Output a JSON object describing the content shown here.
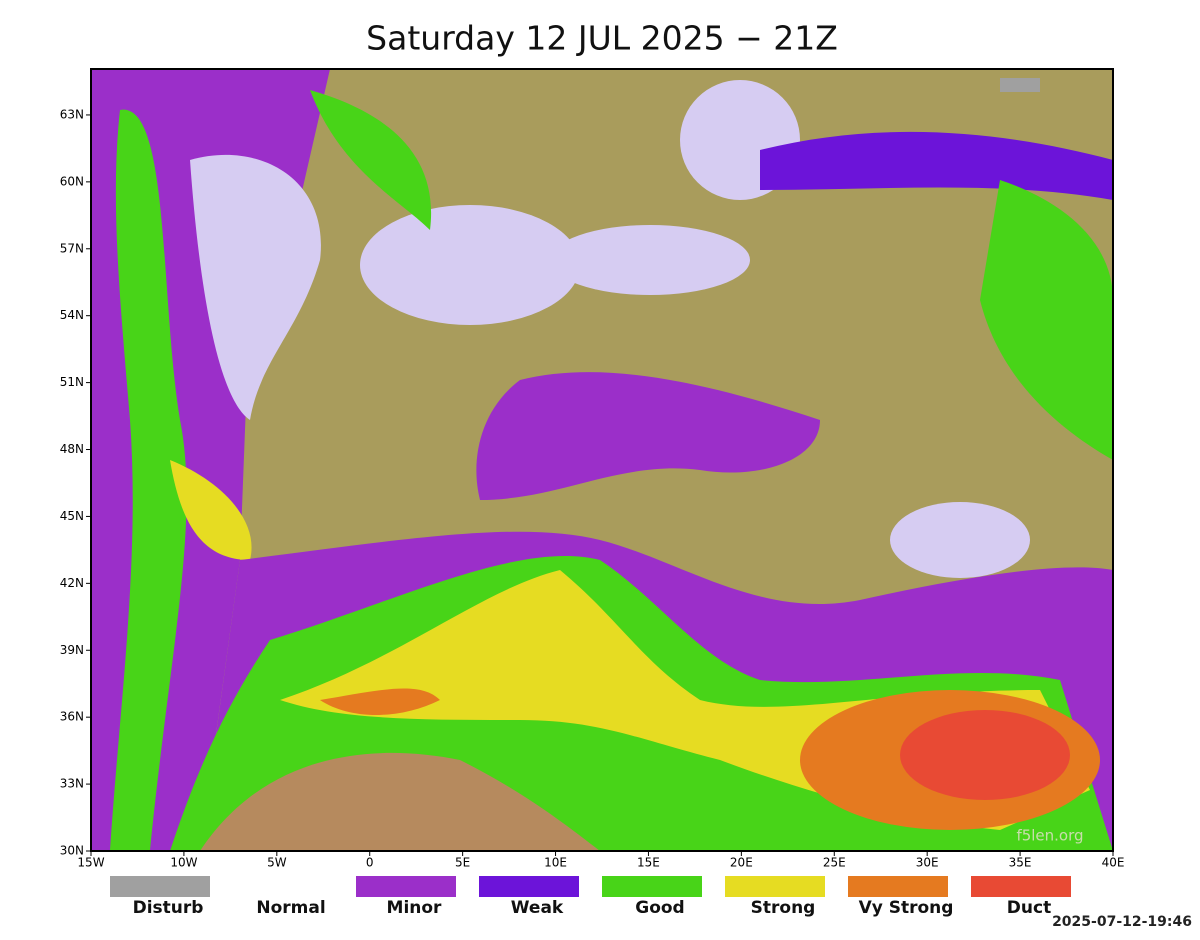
{
  "title": "Saturday 12 JUL 2025 − 21Z",
  "map": {
    "lat_range": [
      30,
      65.06
    ],
    "lon_range": [
      -15,
      40
    ],
    "lat_ticks": [
      {
        "value": 30,
        "label": "30N"
      },
      {
        "value": 33,
        "label": "33N"
      },
      {
        "value": 36,
        "label": "36N"
      },
      {
        "value": 39,
        "label": "39N"
      },
      {
        "value": 42,
        "label": "42N"
      },
      {
        "value": 45,
        "label": "45N"
      },
      {
        "value": 48,
        "label": "48N"
      },
      {
        "value": 51,
        "label": "51N"
      },
      {
        "value": 54,
        "label": "54N"
      },
      {
        "value": 57,
        "label": "57N"
      },
      {
        "value": 60,
        "label": "60N"
      },
      {
        "value": 63,
        "label": "63N"
      }
    ],
    "lon_ticks": [
      {
        "value": -15,
        "label": "15W"
      },
      {
        "value": -10,
        "label": "10W"
      },
      {
        "value": -5,
        "label": "5W"
      },
      {
        "value": 0,
        "label": "0"
      },
      {
        "value": 5,
        "label": "5E"
      },
      {
        "value": 10,
        "label": "10E"
      },
      {
        "value": 15,
        "label": "15E"
      },
      {
        "value": 20,
        "label": "20E"
      },
      {
        "value": 25,
        "label": "25E"
      },
      {
        "value": 30,
        "label": "30E"
      },
      {
        "value": 35,
        "label": "35E"
      },
      {
        "value": 40,
        "label": "40E"
      }
    ],
    "watermark": "f5len.org"
  },
  "legend": [
    {
      "label": "Disturb",
      "color": "#a0a0a0"
    },
    {
      "label": "Normal",
      "color": "#ffffff"
    },
    {
      "label": "Minor",
      "color": "#9b2fc9"
    },
    {
      "label": "Weak",
      "color": "#6c14d9"
    },
    {
      "label": "Good",
      "color": "#48d418"
    },
    {
      "label": "Strong",
      "color": "#e6dc22"
    },
    {
      "label": "Vy Strong",
      "color": "#e57a20"
    },
    {
      "label": "Duct",
      "color": "#e84a34"
    }
  ],
  "timestamp": "2025-07-12-19:46"
}
